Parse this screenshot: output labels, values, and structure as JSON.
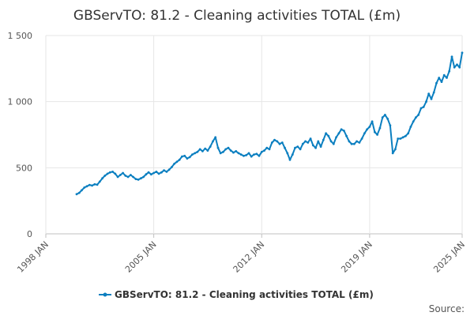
{
  "chart_data": {
    "type": "line",
    "title": "GBServTO: 81.2 - Cleaning activities TOTAL (£m)",
    "xlabel": "",
    "ylabel": "",
    "xlim": [
      "1998-01",
      "2025-01"
    ],
    "ylim": [
      0,
      1500
    ],
    "y_ticks": [
      0,
      500,
      1000,
      1500
    ],
    "y_tick_labels": [
      "0",
      "500",
      "1 000",
      "1 500"
    ],
    "x_ticks": [
      "1998-01",
      "2005-01",
      "2012-01",
      "2019-01",
      "2025-01"
    ],
    "x_tick_labels": [
      "1998 JAN",
      "2005 JAN",
      "2012 JAN",
      "2019 JAN",
      "2025 JAN"
    ],
    "grid": true,
    "legend_position": "bottom",
    "series": [
      {
        "name": "GBServTO: 81.2 - Cleaning activities TOTAL (£m)",
        "color": "#0b7fc0",
        "points": [
          [
            "2000-01",
            300
          ],
          [
            "2000-03",
            310
          ],
          [
            "2000-05",
            330
          ],
          [
            "2000-07",
            350
          ],
          [
            "2000-09",
            360
          ],
          [
            "2000-11",
            370
          ],
          [
            "2001-01",
            365
          ],
          [
            "2001-03",
            375
          ],
          [
            "2001-05",
            372
          ],
          [
            "2001-07",
            395
          ],
          [
            "2001-09",
            420
          ],
          [
            "2001-11",
            440
          ],
          [
            "2002-01",
            455
          ],
          [
            "2002-03",
            465
          ],
          [
            "2002-05",
            470
          ],
          [
            "2002-07",
            455
          ],
          [
            "2002-09",
            430
          ],
          [
            "2002-11",
            445
          ],
          [
            "2003-01",
            460
          ],
          [
            "2003-03",
            440
          ],
          [
            "2003-05",
            430
          ],
          [
            "2003-07",
            445
          ],
          [
            "2003-09",
            430
          ],
          [
            "2003-11",
            415
          ],
          [
            "2004-01",
            410
          ],
          [
            "2004-03",
            420
          ],
          [
            "2004-05",
            430
          ],
          [
            "2004-07",
            450
          ],
          [
            "2004-09",
            465
          ],
          [
            "2004-11",
            450
          ],
          [
            "2005-01",
            460
          ],
          [
            "2005-03",
            470
          ],
          [
            "2005-05",
            455
          ],
          [
            "2005-07",
            465
          ],
          [
            "2005-09",
            480
          ],
          [
            "2005-11",
            470
          ],
          [
            "2006-01",
            485
          ],
          [
            "2006-03",
            505
          ],
          [
            "2006-05",
            530
          ],
          [
            "2006-07",
            545
          ],
          [
            "2006-09",
            560
          ],
          [
            "2006-11",
            585
          ],
          [
            "2007-01",
            590
          ],
          [
            "2007-03",
            570
          ],
          [
            "2007-05",
            580
          ],
          [
            "2007-07",
            600
          ],
          [
            "2007-09",
            610
          ],
          [
            "2007-11",
            620
          ],
          [
            "2008-01",
            640
          ],
          [
            "2008-03",
            625
          ],
          [
            "2008-05",
            645
          ],
          [
            "2008-07",
            630
          ],
          [
            "2008-09",
            660
          ],
          [
            "2008-11",
            700
          ],
          [
            "2009-01",
            730
          ],
          [
            "2009-03",
            650
          ],
          [
            "2009-05",
            610
          ],
          [
            "2009-07",
            620
          ],
          [
            "2009-09",
            640
          ],
          [
            "2009-11",
            650
          ],
          [
            "2010-01",
            630
          ],
          [
            "2010-03",
            615
          ],
          [
            "2010-05",
            625
          ],
          [
            "2010-07",
            610
          ],
          [
            "2010-09",
            600
          ],
          [
            "2010-11",
            590
          ],
          [
            "2011-01",
            595
          ],
          [
            "2011-03",
            610
          ],
          [
            "2011-05",
            585
          ],
          [
            "2011-07",
            600
          ],
          [
            "2011-09",
            605
          ],
          [
            "2011-11",
            590
          ],
          [
            "2012-01",
            620
          ],
          [
            "2012-03",
            630
          ],
          [
            "2012-05",
            650
          ],
          [
            "2012-07",
            640
          ],
          [
            "2012-09",
            690
          ],
          [
            "2012-11",
            710
          ],
          [
            "2013-01",
            700
          ],
          [
            "2013-03",
            680
          ],
          [
            "2013-05",
            690
          ],
          [
            "2013-07",
            650
          ],
          [
            "2013-09",
            610
          ],
          [
            "2013-11",
            560
          ],
          [
            "2014-01",
            600
          ],
          [
            "2014-03",
            650
          ],
          [
            "2014-05",
            660
          ],
          [
            "2014-07",
            640
          ],
          [
            "2014-09",
            680
          ],
          [
            "2014-11",
            700
          ],
          [
            "2015-01",
            690
          ],
          [
            "2015-03",
            720
          ],
          [
            "2015-05",
            670
          ],
          [
            "2015-07",
            650
          ],
          [
            "2015-09",
            700
          ],
          [
            "2015-11",
            660
          ],
          [
            "2016-01",
            710
          ],
          [
            "2016-03",
            760
          ],
          [
            "2016-05",
            740
          ],
          [
            "2016-07",
            700
          ],
          [
            "2016-09",
            680
          ],
          [
            "2016-11",
            730
          ],
          [
            "2017-01",
            760
          ],
          [
            "2017-03",
            790
          ],
          [
            "2017-05",
            780
          ],
          [
            "2017-07",
            740
          ],
          [
            "2017-09",
            700
          ],
          [
            "2017-11",
            680
          ],
          [
            "2018-01",
            680
          ],
          [
            "2018-03",
            700
          ],
          [
            "2018-05",
            690
          ],
          [
            "2018-07",
            720
          ],
          [
            "2018-09",
            760
          ],
          [
            "2018-11",
            790
          ],
          [
            "2019-01",
            810
          ],
          [
            "2019-03",
            850
          ],
          [
            "2019-05",
            770
          ],
          [
            "2019-07",
            750
          ],
          [
            "2019-09",
            800
          ],
          [
            "2019-11",
            880
          ],
          [
            "2020-01",
            900
          ],
          [
            "2020-03",
            870
          ],
          [
            "2020-05",
            820
          ],
          [
            "2020-07",
            610
          ],
          [
            "2020-09",
            640
          ],
          [
            "2020-11",
            720
          ],
          [
            "2021-01",
            720
          ],
          [
            "2021-03",
            730
          ],
          [
            "2021-05",
            740
          ],
          [
            "2021-07",
            760
          ],
          [
            "2021-09",
            810
          ],
          [
            "2021-11",
            850
          ],
          [
            "2022-01",
            880
          ],
          [
            "2022-03",
            900
          ],
          [
            "2022-05",
            950
          ],
          [
            "2022-07",
            960
          ],
          [
            "2022-09",
            1000
          ],
          [
            "2022-11",
            1060
          ],
          [
            "2023-01",
            1020
          ],
          [
            "2023-03",
            1070
          ],
          [
            "2023-05",
            1140
          ],
          [
            "2023-07",
            1180
          ],
          [
            "2023-09",
            1150
          ],
          [
            "2023-11",
            1200
          ],
          [
            "2024-01",
            1180
          ],
          [
            "2024-03",
            1230
          ],
          [
            "2024-05",
            1340
          ],
          [
            "2024-07",
            1260
          ],
          [
            "2024-09",
            1280
          ],
          [
            "2024-11",
            1260
          ],
          [
            "2025-01",
            1370
          ]
        ]
      }
    ]
  },
  "legend": {
    "label": "GBServTO: 81.2 - Cleaning activities TOTAL (£m)"
  },
  "footer": {
    "source_label": "Source:"
  }
}
